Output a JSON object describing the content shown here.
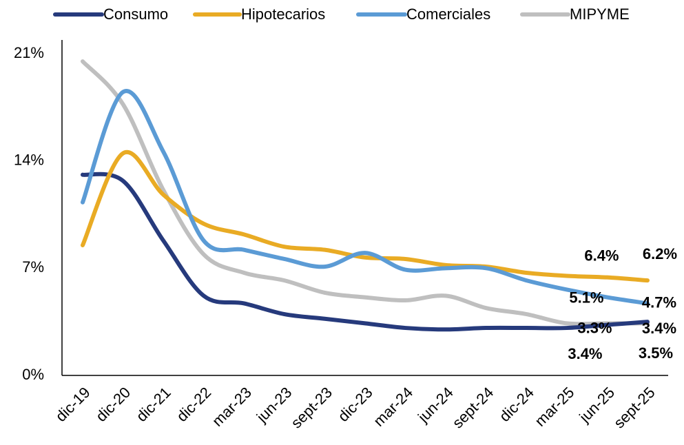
{
  "chart_data": {
    "type": "line",
    "categories": [
      "dic-19",
      "dic-20",
      "dic-21",
      "dic-22",
      "mar-23",
      "jun-23",
      "sept-23",
      "dic-23",
      "mar-24",
      "jun-24",
      "sept-24",
      "dic-24",
      "mar-25",
      "jun-25",
      "sept-25"
    ],
    "series": [
      {
        "name": "Consumo",
        "color": "#263a7c",
        "values": [
          13.1,
          12.7,
          8.8,
          5.2,
          4.7,
          4.0,
          3.7,
          3.4,
          3.1,
          3.0,
          3.1,
          3.1,
          3.1,
          3.3,
          3.5
        ],
        "value_labels": [
          null,
          null,
          null,
          null,
          null,
          null,
          null,
          null,
          null,
          null,
          null,
          null,
          null,
          "3.3%",
          "3.5%"
        ]
      },
      {
        "name": "Hipotecarios",
        "color": "#e9ab24",
        "values": [
          8.5,
          14.5,
          11.8,
          9.9,
          9.2,
          8.4,
          8.2,
          7.7,
          7.6,
          7.2,
          7.1,
          6.7,
          6.5,
          6.4,
          6.2
        ],
        "value_labels": [
          null,
          null,
          null,
          null,
          null,
          null,
          null,
          null,
          null,
          null,
          null,
          null,
          null,
          "6.4%",
          "6.2%"
        ]
      },
      {
        "name": "Comerciales",
        "color": "#5b9bd5",
        "values": [
          11.3,
          18.5,
          14.6,
          8.8,
          8.2,
          7.6,
          7.1,
          8.0,
          6.9,
          7.0,
          7.0,
          6.2,
          5.6,
          5.1,
          4.7
        ],
        "value_labels": [
          null,
          null,
          null,
          null,
          null,
          null,
          null,
          null,
          null,
          null,
          null,
          null,
          null,
          "5.1%",
          "4.7%"
        ]
      },
      {
        "name": "MIPYME",
        "color": "#bfbfbf",
        "values": [
          20.5,
          17.7,
          12.1,
          7.9,
          6.7,
          6.2,
          5.4,
          5.1,
          4.9,
          5.2,
          4.4,
          4.0,
          3.4,
          3.4,
          3.4
        ],
        "value_labels": [
          null,
          null,
          null,
          null,
          null,
          null,
          null,
          null,
          null,
          null,
          null,
          null,
          null,
          "3.4%",
          "3.4%"
        ]
      }
    ],
    "ylim": [
      0,
      21
    ],
    "yticks": [
      {
        "value": 0,
        "label": "0%"
      },
      {
        "value": 7,
        "label": "7%"
      },
      {
        "value": 14,
        "label": "14%"
      },
      {
        "value": 21,
        "label": "21%"
      }
    ],
    "grid": false
  }
}
